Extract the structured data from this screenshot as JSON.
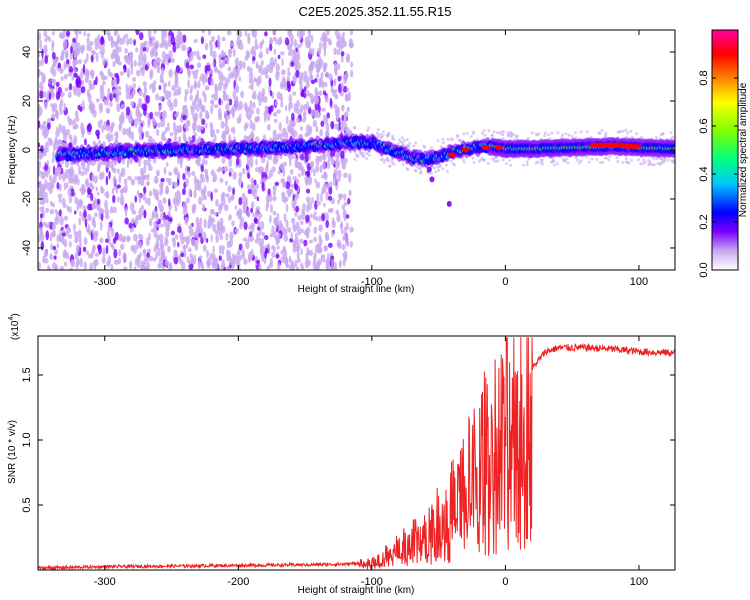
{
  "title": "C2E5.2025.352.11.55.R15",
  "chart_data": [
    {
      "type": "heatmap",
      "xlabel": "Height of straight line (km)",
      "ylabel": "Frequency (Hz)",
      "xlim": [
        -350,
        127
      ],
      "ylim": [
        -49,
        49
      ],
      "x_ticks": [
        -300,
        -200,
        -100,
        0,
        100
      ],
      "y_ticks": [
        40,
        20,
        0,
        -20,
        -40
      ],
      "colorbar": {
        "label": "Normalized spectral amplitude",
        "range": [
          0,
          1
        ],
        "ticks": [
          0.0,
          0.2,
          0.4,
          0.6,
          0.8
        ],
        "colors": [
          "#ffffff",
          "#c8a8f0",
          "#7a00ff",
          "#0000ff",
          "#00c8ff",
          "#00ff80",
          "#80ff00",
          "#ffff00",
          "#ff8000",
          "#ff0000",
          "#ff00a0"
        ]
      },
      "center_frequency_track": {
        "x": [
          -330,
          -300,
          -250,
          -200,
          -150,
          -120,
          -100,
          -90,
          -80,
          -70,
          -60,
          -50,
          -40,
          -30,
          -20,
          -10,
          0,
          20,
          50,
          80,
          100,
          127
        ],
        "y": [
          -2,
          -1,
          0,
          0.5,
          1.5,
          3,
          3,
          1,
          -1,
          -3,
          -4,
          -3,
          -1,
          0.5,
          1,
          1.5,
          0.5,
          0.5,
          1,
          1.5,
          1,
          0.5
        ]
      }
    },
    {
      "type": "line",
      "xlabel": "Height of straight line (km)",
      "ylabel": "SNR (10 * v/v)",
      "y_multiplier": "(x10",
      "y_multiplier_exp": "4",
      "xlim": [
        -350,
        127
      ],
      "ylim": [
        0,
        18000
      ],
      "x_ticks": [
        -300,
        -200,
        -100,
        0,
        100
      ],
      "y_ticks": [
        0.5,
        1.0,
        1.5
      ],
      "line_color": "#ee2222",
      "series": [
        {
          "x": [
            -350,
            -300,
            -250,
            -200,
            -150,
            -120,
            -100,
            -90,
            -80,
            -70,
            -60,
            -50,
            -40,
            -30,
            -20,
            -10,
            0,
            10,
            20,
            30,
            40,
            60,
            80,
            100,
            127
          ],
          "y": [
            150,
            250,
            300,
            350,
            400,
            450,
            600,
            1200,
            1800,
            2500,
            3200,
            4200,
            5500,
            7200,
            9200,
            11000,
            11800,
            13500,
            15500,
            16800,
            17100,
            17100,
            17000,
            16800,
            16700
          ]
        }
      ]
    }
  ]
}
